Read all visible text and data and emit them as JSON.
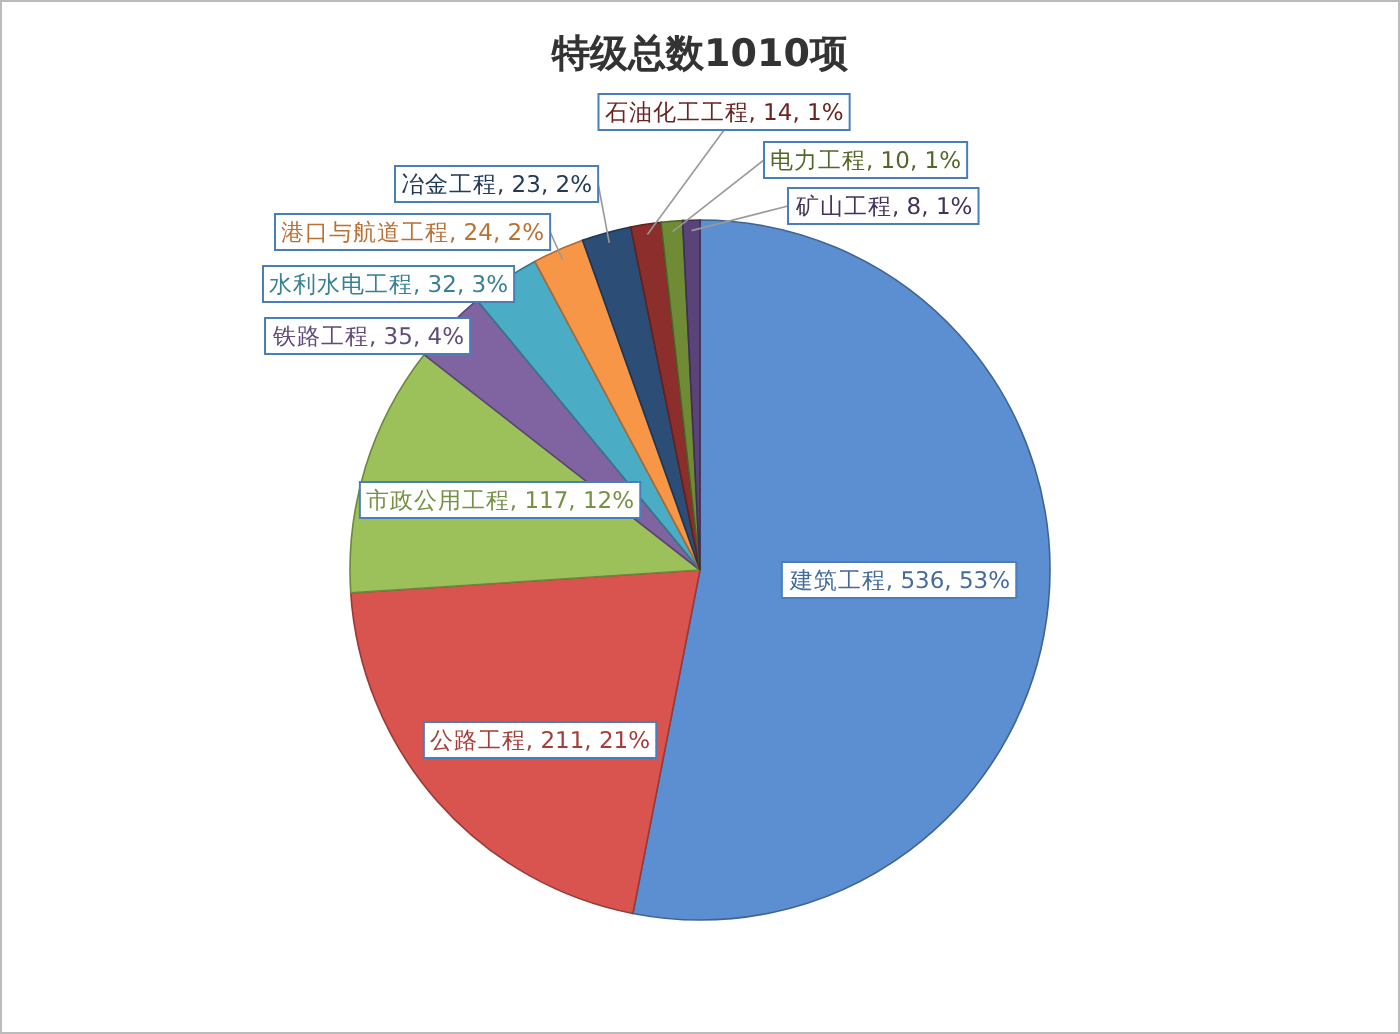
{
  "chart_data": {
    "type": "pie",
    "title": "特级总数1010项",
    "categories": [
      "建筑工程",
      "公路工程",
      "市政公用工程",
      "铁路工程",
      "水利水电工程",
      "港口与航道工程",
      "冶金工程",
      "石油化工工程",
      "电力工程",
      "矿山工程"
    ],
    "values": [
      536,
      211,
      117,
      35,
      32,
      24,
      23,
      14,
      10,
      8
    ],
    "value_labels": [
      ", 536, 53%",
      ", 211, 21%",
      ", 117, 12%",
      ", 35, 4%",
      ", 32, 3%",
      ", 24, 2%",
      ", 23, 2%",
      ", 14, 1%",
      ", 10, 1%",
      ", 8, 1%"
    ],
    "colors": [
      "#5b8fd1",
      "#d9534f",
      "#9cc15a",
      "#8064a2",
      "#4bacc6",
      "#f79646",
      "#2c4d75",
      "#8c2f2c",
      "#6f8b35",
      "#5a4378"
    ]
  }
}
